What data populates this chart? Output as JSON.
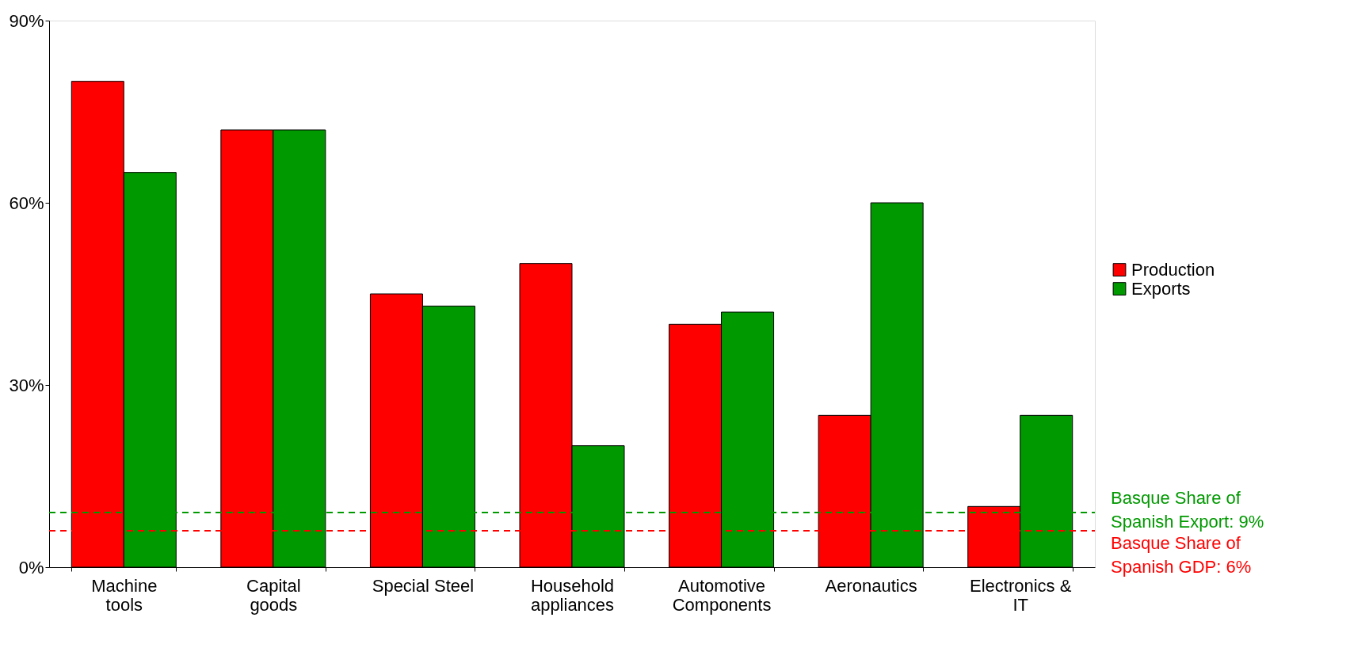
{
  "chart_data": {
    "type": "bar",
    "categories": [
      "Machine\ntools",
      "Capital\ngoods",
      "Special Steel",
      "Household\nappliances",
      "Automotive\nComponents",
      "Aeronautics",
      "Electronics &\nIT"
    ],
    "series": [
      {
        "name": "Production",
        "color": "#ff0000",
        "values": [
          80,
          72,
          45,
          50,
          40,
          25,
          10
        ]
      },
      {
        "name": "Exports",
        "color": "#009900",
        "values": [
          65,
          72,
          43,
          20,
          42,
          60,
          25
        ]
      }
    ],
    "ylim": [
      0,
      90
    ],
    "yticks": [
      {
        "value": 0,
        "label": "0%"
      },
      {
        "value": 30,
        "label": "30%"
      },
      {
        "value": 60,
        "label": "60%"
      },
      {
        "value": 90,
        "label": "90%"
      }
    ],
    "ref_lines": [
      {
        "axis": "y",
        "value": 9,
        "label": "Basque Share of Spanish Export: 9%",
        "color": "#009900",
        "line_style": "dashed"
      },
      {
        "axis": "y",
        "value": 6,
        "label": "Basque Share of Spanish GDP: 6%",
        "color": "#ff0000",
        "line_style": "dashed"
      }
    ],
    "legend": "right",
    "grid": false
  }
}
